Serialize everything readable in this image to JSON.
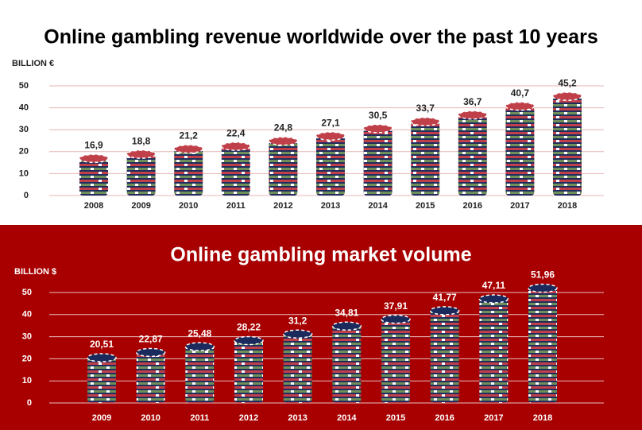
{
  "chart_data": [
    {
      "type": "bar",
      "title": "Online gambling revenue worldwide over the past 10 years",
      "y_label": "BILLION €",
      "categories": [
        "2008",
        "2009",
        "2010",
        "2011",
        "2012",
        "2013",
        "2014",
        "2015",
        "2016",
        "2017",
        "2018"
      ],
      "values": [
        16.9,
        18.8,
        21.2,
        22.4,
        24.8,
        27.1,
        30.5,
        33.7,
        36.7,
        40.7,
        45.2
      ],
      "value_labels": [
        "16,9",
        "18,8",
        "21,2",
        "22,4",
        "24,8",
        "27,1",
        "30,5",
        "33,7",
        "36,7",
        "40,7",
        "45,2"
      ],
      "color": "#c0404a",
      "ylim": [
        0,
        50
      ],
      "yticks": [
        0,
        10,
        20,
        30,
        40,
        50
      ],
      "grid": true
    },
    {
      "type": "bar",
      "title": "Online gambling market volume",
      "y_label": "BILLION $",
      "categories": [
        "2009",
        "2010",
        "2011",
        "2012",
        "2013",
        "2014",
        "2015",
        "2016",
        "2017",
        "2018"
      ],
      "values": [
        20.51,
        22.87,
        25.48,
        28.22,
        31.2,
        34.81,
        37.91,
        41.77,
        47.11,
        51.96
      ],
      "value_labels": [
        "20,51",
        "22,87",
        "25,48",
        "28,22",
        "31,2",
        "34,81",
        "37,91",
        "41,77",
        "47,11",
        "51,96"
      ],
      "color": "#1b2a5c",
      "ylim": [
        0,
        50
      ],
      "yticks": [
        0,
        10,
        20,
        30,
        40,
        50
      ],
      "grid": true
    }
  ]
}
